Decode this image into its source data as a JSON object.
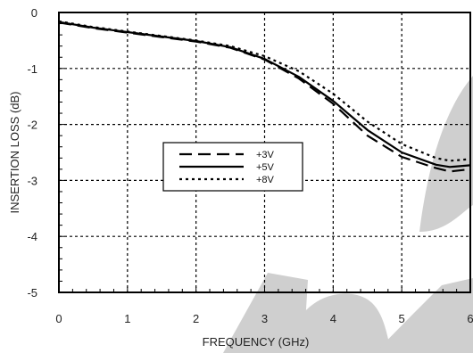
{
  "chart_data": {
    "type": "line",
    "xlabel": "FREQUENCY (GHz)",
    "ylabel": "INSERTION LOSS (dB)",
    "xlim": [
      0,
      6
    ],
    "ylim": [
      -5,
      0
    ],
    "xticks": [
      "0",
      "1",
      "2",
      "3",
      "4",
      "5",
      "6"
    ],
    "yticks": [
      "0",
      "-1",
      "-2",
      "-3",
      "-4",
      "-5"
    ],
    "grid": true,
    "legend_position": "center-left",
    "watermark": "OBSOLETE",
    "series": [
      {
        "name": "+3V",
        "style": "dashed",
        "x": [
          0,
          0.5,
          1,
          1.5,
          2,
          2.5,
          3,
          3.5,
          4,
          4.5,
          5,
          5.5,
          5.7,
          6
        ],
        "y": [
          -0.18,
          -0.28,
          -0.36,
          -0.44,
          -0.52,
          -0.63,
          -0.84,
          -1.18,
          -1.63,
          -2.2,
          -2.58,
          -2.78,
          -2.84,
          -2.8
        ]
      },
      {
        "name": "+5V",
        "style": "solid",
        "x": [
          0,
          0.5,
          1,
          1.5,
          2,
          2.5,
          3,
          3.5,
          4,
          4.5,
          5,
          5.5,
          5.7,
          6
        ],
        "y": [
          -0.17,
          -0.27,
          -0.35,
          -0.43,
          -0.51,
          -0.62,
          -0.83,
          -1.15,
          -1.58,
          -2.1,
          -2.5,
          -2.72,
          -2.76,
          -2.73
        ]
      },
      {
        "name": "+8V",
        "style": "dotted",
        "x": [
          0,
          0.5,
          1,
          1.5,
          2,
          2.5,
          3,
          3.5,
          4,
          4.5,
          5,
          5.5,
          5.7,
          6
        ],
        "y": [
          -0.16,
          -0.26,
          -0.34,
          -0.42,
          -0.5,
          -0.6,
          -0.78,
          -1.05,
          -1.45,
          -1.95,
          -2.35,
          -2.6,
          -2.65,
          -2.62
        ]
      }
    ]
  }
}
